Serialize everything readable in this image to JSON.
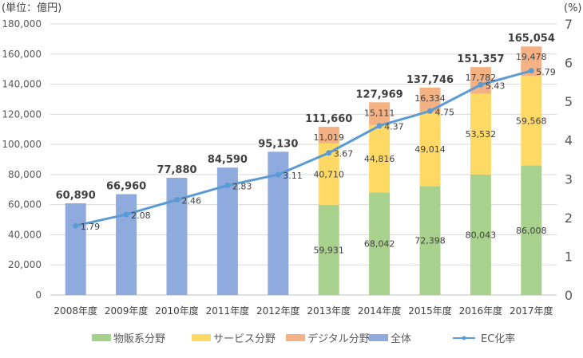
{
  "chart_data": {
    "type": "bar",
    "left_unit_label": "(単位：億円)",
    "right_unit_label": "(%)",
    "categories": [
      "2008年度",
      "2009年度",
      "2010年度",
      "2011年度",
      "2012年度",
      "2013年度",
      "2014年度",
      "2015年度",
      "2016年度",
      "2017年度"
    ],
    "ylim": [
      0,
      180000
    ],
    "y_ticks": [
      "0",
      "20,000",
      "40,000",
      "60,000",
      "80,000",
      "100,000",
      "120,000",
      "140,000",
      "160,000",
      "180,000"
    ],
    "y2lim": [
      0,
      7
    ],
    "y2_ticks": [
      "0",
      "1",
      "2",
      "3",
      "4",
      "5",
      "6",
      "7"
    ],
    "grid": true,
    "legend_position": "bottom",
    "series": [
      {
        "name": "物販系分野",
        "color": "#a9d18e",
        "values": [
          null,
          null,
          null,
          null,
          null,
          59931,
          68042,
          72398,
          80043,
          86008
        ],
        "labels": [
          "",
          "",
          "",
          "",
          "",
          "59,931",
          "68,042",
          "72,398",
          "80,043",
          "86,008"
        ]
      },
      {
        "name": "サービス分野",
        "color": "#ffd966",
        "values": [
          null,
          null,
          null,
          null,
          null,
          40710,
          44816,
          49014,
          53532,
          59568
        ],
        "labels": [
          "",
          "",
          "",
          "",
          "",
          "40,710",
          "44,816",
          "49,014",
          "53,532",
          "59,568"
        ]
      },
      {
        "name": "デジタル分野",
        "color": "#f4b183",
        "values": [
          null,
          null,
          null,
          null,
          null,
          11019,
          15111,
          16334,
          17782,
          19478
        ],
        "labels": [
          "",
          "",
          "",
          "",
          "",
          "11,019",
          "15,111",
          "16,334",
          "17,782",
          "19,478"
        ]
      },
      {
        "name": "全体",
        "color": "#8faadc",
        "values": [
          60890,
          66960,
          77880,
          84590,
          95130,
          111660,
          127969,
          137746,
          151357,
          165054
        ],
        "labels": [
          "60,890",
          "66,960",
          "77,880",
          "84,590",
          "95,130",
          "111,660",
          "127,969",
          "137,746",
          "151,357",
          "165,054"
        ]
      },
      {
        "name": "EC化率",
        "color": "#5b9bd5",
        "type": "line",
        "axis": "right",
        "values": [
          1.79,
          2.08,
          2.46,
          2.83,
          3.11,
          3.67,
          4.37,
          4.75,
          5.43,
          5.79
        ],
        "labels": [
          "1.79",
          "2.08",
          "2.46",
          "2.83",
          "3.11",
          "3.67",
          "4.37",
          "4.75",
          "5.43",
          "5.79"
        ]
      }
    ]
  }
}
